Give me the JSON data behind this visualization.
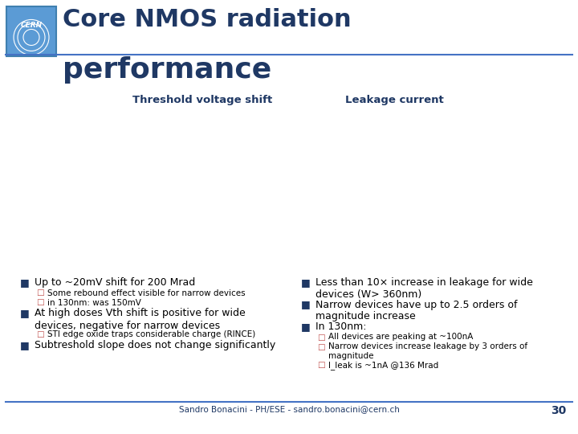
{
  "title_line1": "Core NMOS radiation",
  "title_line2": "performance",
  "title_color": "#1F3864",
  "title_fontsize": 22,
  "title2_fontsize": 26,
  "bg_color": "#FFFFFF",
  "header_line_color": "#4472C4",
  "col1_header": "Threshold voltage shift",
  "col2_header": "Leakage current",
  "col_header_color": "#1F3864",
  "col_header_fontsize": 9.5,
  "bullet_color": "#1F3864",
  "sub_bullet_color": "#C0504D",
  "text_color": "#000000",
  "left_bullets": [
    {
      "level": 1,
      "text": "Up to ~20mV shift for 200 Mrad"
    },
    {
      "level": 2,
      "text": "Some rebound effect visible for narrow devices"
    },
    {
      "level": 2,
      "text": "in 130nm: was 150mV"
    },
    {
      "level": 1,
      "text": "At high doses Vth shift is positive for wide\ndevices, negative for narrow devices"
    },
    {
      "level": 2,
      "text": "STI edge oxide traps considerable charge (RINCE)"
    },
    {
      "level": 1,
      "text": "Subtreshold slope does not change significantly"
    }
  ],
  "right_bullets": [
    {
      "level": 1,
      "text": "Less than 10× increase in leakage for wide\ndevices (W> 360nm)"
    },
    {
      "level": 1,
      "text": "Narrow devices have up to 2.5 orders of\nmagnitude increase"
    },
    {
      "level": 1,
      "text": "In 130nm:"
    },
    {
      "level": 2,
      "text": "All devices are peaking at ~100nA"
    },
    {
      "level": 2,
      "text": "Narrow devices increase leakage by 3 orders of\nmagnitude"
    },
    {
      "level": 2,
      "text": "I_leak is ~1nA @136 Mrad"
    }
  ],
  "footer_text": "Sandro Bonacini - PH/ESE - sandro.bonacini@cern.ch",
  "footer_page": "30",
  "footer_color": "#1F3864",
  "footer_line_color": "#4472C4",
  "bullet_main_fontsize": 9,
  "bullet_sub_fontsize": 7.5,
  "logo_bg": "#5B9BD5",
  "logo_border": "#4472C4"
}
